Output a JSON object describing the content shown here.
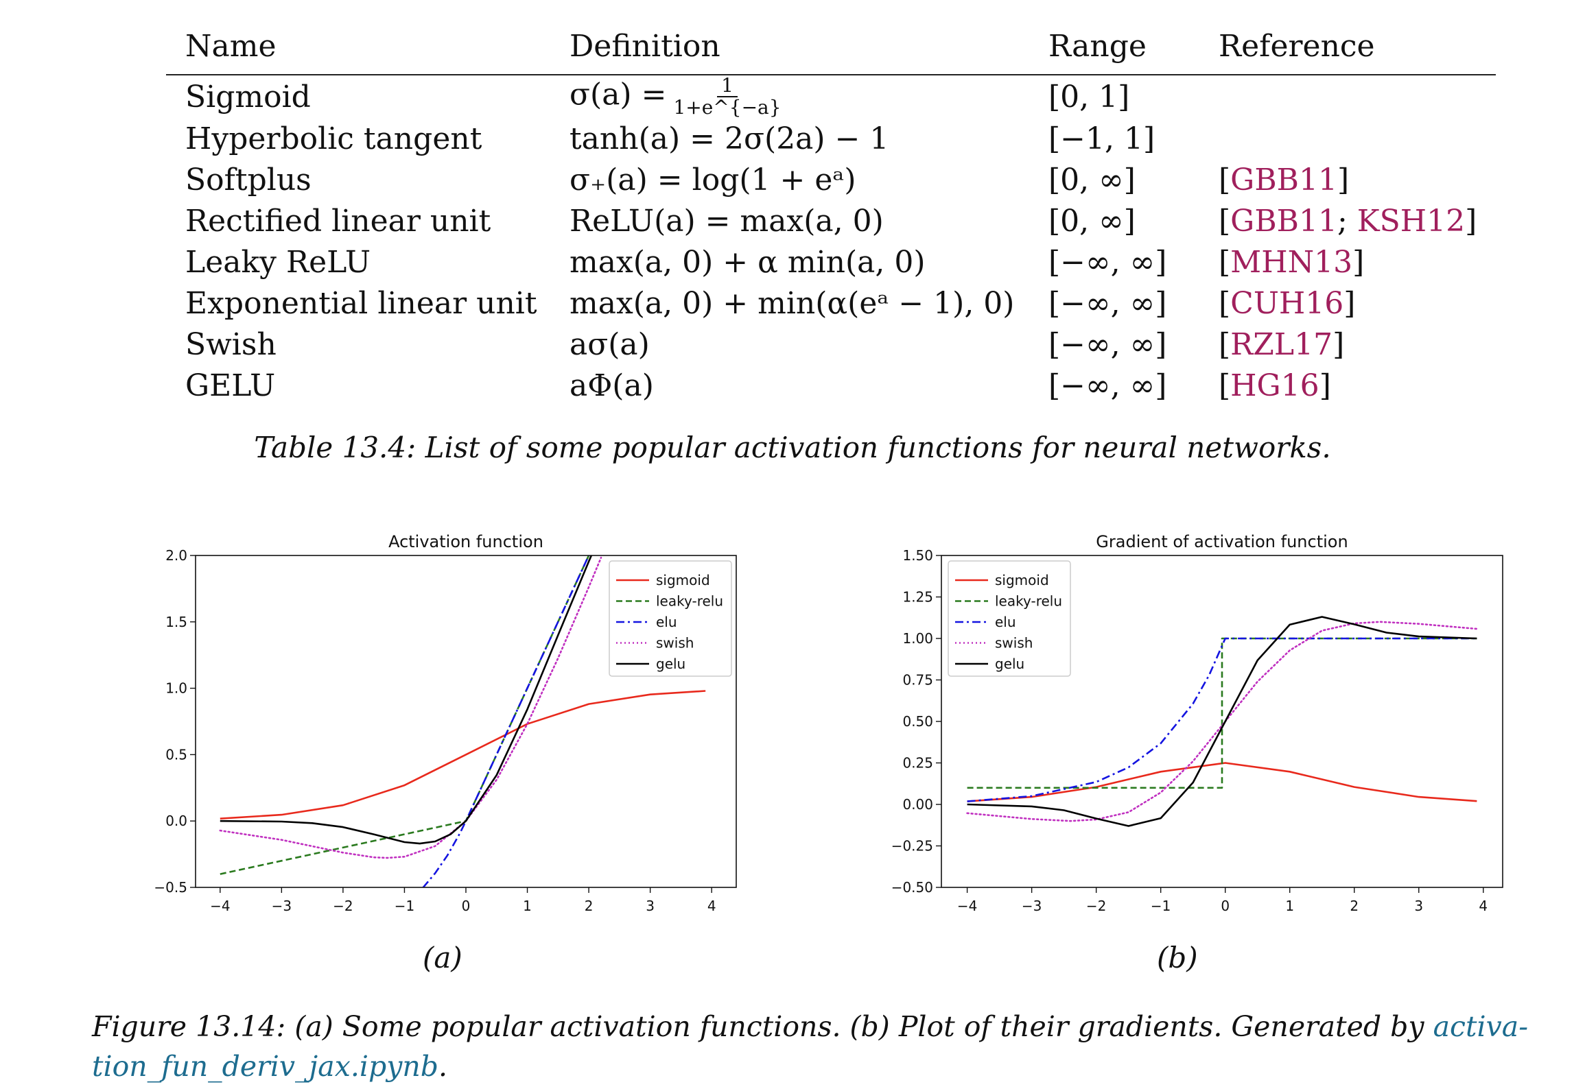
{
  "table": {
    "headers": [
      "Name",
      "Definition",
      "Range",
      "Reference"
    ],
    "rows": [
      {
        "name": "Sigmoid",
        "def": "σ(a) =",
        "def_num": "1",
        "def_den": "1+e^{−a}",
        "range": "[0, 1]",
        "refs": []
      },
      {
        "name": "Hyperbolic tangent",
        "def": "tanh(a) = 2σ(2a) − 1",
        "range": "[−1, 1]",
        "refs": []
      },
      {
        "name": "Softplus",
        "def": "σ₊(a) = log(1 + eᵃ)",
        "range": "[0, ∞]",
        "refs": [
          "GBB11"
        ]
      },
      {
        "name": "Rectified linear unit",
        "def": "ReLU(a) = max(a, 0)",
        "range": "[0, ∞]",
        "refs": [
          "GBB11",
          "KSH12"
        ]
      },
      {
        "name": "Leaky ReLU",
        "def": "max(a, 0) + α min(a, 0)",
        "range": "[−∞, ∞]",
        "refs": [
          "MHN13"
        ]
      },
      {
        "name": "Exponential linear unit",
        "def": "max(a, 0) + min(α(eᵃ − 1), 0)",
        "range": "[−∞, ∞]",
        "refs": [
          "CUH16"
        ]
      },
      {
        "name": "Swish",
        "def": "aσ(a)",
        "range": "[−∞, ∞]",
        "refs": [
          "RZL17"
        ]
      },
      {
        "name": "GELU",
        "def": "aΦ(a)",
        "range": "[−∞, ∞]",
        "refs": [
          "HG16"
        ]
      }
    ],
    "caption": "Table 13.4: List of some popular activation functions for neural networks."
  },
  "chart_data": [
    {
      "type": "line",
      "title": "Activation function",
      "xlabel": "",
      "ylabel": "",
      "xlim": [
        -4.4,
        4.4
      ],
      "ylim": [
        -0.5,
        2.0
      ],
      "xticks": [
        -4,
        -3,
        -2,
        -1,
        0,
        1,
        2,
        3,
        4
      ],
      "yticks": [
        -0.5,
        0.0,
        0.5,
        1.0,
        1.5,
        2.0
      ],
      "ytick_labels": [
        "−0.5",
        "0.0",
        "0.5",
        "1.0",
        "1.5",
        "2.0"
      ],
      "xtick_labels": [
        "−4",
        "−3",
        "−2",
        "−1",
        "0",
        "1",
        "2",
        "3",
        "4"
      ],
      "grid": false,
      "legend": "top-right",
      "series": [
        {
          "name": "sigmoid",
          "color": "#e8291c",
          "style": "solid",
          "x": [
            -4,
            -3,
            -2,
            -1,
            0,
            1,
            2,
            3,
            3.9
          ],
          "y": [
            0.018,
            0.047,
            0.119,
            0.269,
            0.5,
            0.731,
            0.881,
            0.953,
            0.98
          ]
        },
        {
          "name": "leaky-relu",
          "color": "#2a7a1e",
          "style": "dashed",
          "x": [
            -4,
            -2,
            0,
            1,
            2,
            2.03
          ],
          "y": [
            -0.4,
            -0.2,
            0.0,
            1.0,
            2.0,
            2.03
          ]
        },
        {
          "name": "elu",
          "color": "#1414e0",
          "style": "dashdot",
          "x": [
            -0.7,
            -0.5,
            -0.3,
            -0.1,
            0,
            1,
            2,
            2.03
          ],
          "y": [
            -0.503,
            -0.393,
            -0.259,
            -0.095,
            0.0,
            1.0,
            2.0,
            2.03
          ]
        },
        {
          "name": "swish",
          "color": "#c030c0",
          "style": "dotted",
          "x": [
            -4,
            -3,
            -2,
            -1.5,
            -1.28,
            -1,
            -0.5,
            0,
            0.5,
            1,
            1.5,
            2,
            2.2
          ],
          "y": [
            -0.072,
            -0.142,
            -0.238,
            -0.274,
            -0.278,
            -0.269,
            -0.189,
            0.0,
            0.311,
            0.731,
            1.226,
            1.762,
            1.984
          ]
        },
        {
          "name": "gelu",
          "color": "#000000",
          "style": "solid",
          "x": [
            -4,
            -3,
            -2.5,
            -2,
            -1.5,
            -1,
            -0.75,
            -0.5,
            -0.25,
            0,
            0.5,
            1,
            1.5,
            2,
            2.15
          ],
          "y": [
            0.0,
            -0.004,
            -0.016,
            -0.046,
            -0.1,
            -0.159,
            -0.17,
            -0.154,
            -0.1,
            0.0,
            0.346,
            0.841,
            1.4,
            1.955,
            2.116
          ]
        }
      ]
    },
    {
      "type": "line",
      "title": "Gradient of activation function",
      "xlabel": "",
      "ylabel": "",
      "xlim": [
        -4.4,
        4.3
      ],
      "ylim": [
        -0.5,
        1.5
      ],
      "xticks": [
        -4,
        -3,
        -2,
        -1,
        0,
        1,
        2,
        3,
        4
      ],
      "yticks": [
        -0.5,
        -0.25,
        0.0,
        0.25,
        0.5,
        0.75,
        1.0,
        1.25,
        1.5
      ],
      "ytick_labels": [
        "−0.50",
        "−0.25",
        "0.00",
        "0.25",
        "0.50",
        "0.75",
        "1.00",
        "1.25",
        "1.50"
      ],
      "xtick_labels": [
        "−4",
        "−3",
        "−2",
        "−1",
        "0",
        "1",
        "2",
        "3",
        "4"
      ],
      "grid": false,
      "legend": "top-left",
      "series": [
        {
          "name": "sigmoid",
          "color": "#e8291c",
          "style": "solid",
          "x": [
            -4,
            -3,
            -2,
            -1,
            0,
            1,
            2,
            3,
            3.9
          ],
          "y": [
            0.018,
            0.045,
            0.105,
            0.197,
            0.25,
            0.197,
            0.105,
            0.045,
            0.02
          ]
        },
        {
          "name": "leaky-relu",
          "color": "#2a7a1e",
          "style": "dashed",
          "x": [
            -4,
            -0.05,
            -0.05,
            3.9
          ],
          "y": [
            0.1,
            0.1,
            1.0,
            1.0
          ]
        },
        {
          "name": "elu",
          "color": "#1414e0",
          "style": "dashdot",
          "x": [
            -4,
            -3,
            -2,
            -1.5,
            -1,
            -0.5,
            -0.25,
            0,
            3.9
          ],
          "y": [
            0.018,
            0.05,
            0.135,
            0.223,
            0.368,
            0.607,
            0.779,
            1.0,
            1.0
          ]
        },
        {
          "name": "swish",
          "color": "#c030c0",
          "style": "dotted",
          "x": [
            -4,
            -3,
            -2.4,
            -2,
            -1.5,
            -1,
            -0.5,
            0,
            0.5,
            1,
            1.5,
            2,
            2.4,
            3,
            3.9
          ],
          "y": [
            -0.053,
            -0.088,
            -0.1,
            -0.091,
            -0.047,
            0.072,
            0.26,
            0.5,
            0.74,
            0.928,
            1.047,
            1.091,
            1.1,
            1.088,
            1.058
          ]
        },
        {
          "name": "gelu",
          "color": "#000000",
          "style": "solid",
          "x": [
            -4,
            -3,
            -2.5,
            -2,
            -1.5,
            -1,
            -0.5,
            0,
            0.5,
            1,
            1.5,
            2,
            2.5,
            3,
            3.9
          ],
          "y": [
            0.0,
            -0.012,
            -0.035,
            -0.085,
            -0.13,
            -0.083,
            0.132,
            0.5,
            0.868,
            1.083,
            1.13,
            1.085,
            1.035,
            1.012,
            1.0
          ]
        }
      ]
    }
  ],
  "sublabels": [
    "(a)",
    "(b)"
  ],
  "figure_caption": {
    "text": "Figure 13.14: (a) Some popular activation functions.  (b) Plot of their gradients.  Generated by ",
    "link_part1": "activa-",
    "link_part2": "tion_fun_deriv_jax.ipynb",
    "end": "."
  }
}
